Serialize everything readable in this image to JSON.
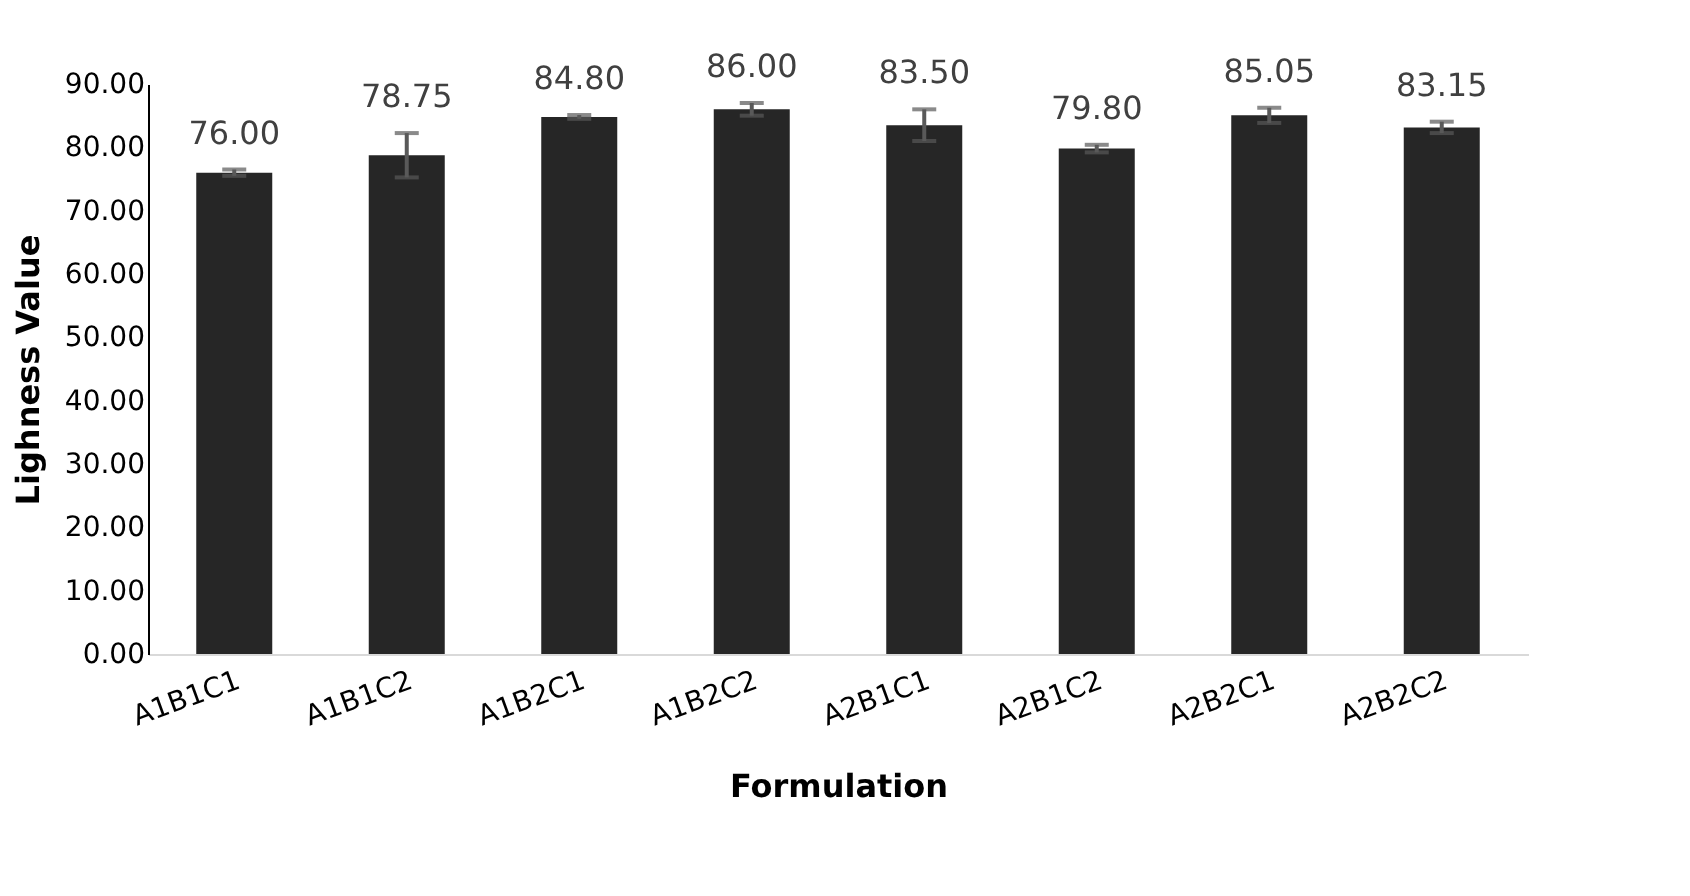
{
  "chart_data": {
    "type": "bar",
    "xlabel": "Formulation",
    "ylabel": "Lighness Value",
    "categories": [
      "A1B1C1",
      "A1B1C2",
      "A1B2C1",
      "A1B2C2",
      "A2B1C1",
      "A2B1C2",
      "A2B2C1",
      "A2B2C2"
    ],
    "values": [
      76.0,
      78.75,
      84.8,
      86.0,
      83.5,
      79.8,
      85.05,
      83.15
    ],
    "errors": [
      0.5,
      3.5,
      0.3,
      1.0,
      2.5,
      0.6,
      1.2,
      0.9
    ],
    "value_labels": [
      "76.00",
      "78.75",
      "84.80",
      "86.00",
      "83.50",
      "79.80",
      "85.05",
      "83.15"
    ],
    "color": "#262626",
    "ylim": [
      0,
      90
    ],
    "yticks": [
      {
        "value": 0,
        "label": "0.00"
      },
      {
        "value": 10,
        "label": "10.00"
      },
      {
        "value": 20,
        "label": "20.00"
      },
      {
        "value": 30,
        "label": "30.00"
      },
      {
        "value": 40,
        "label": "40.00"
      },
      {
        "value": 50,
        "label": "50.00"
      },
      {
        "value": 60,
        "label": "60.00"
      },
      {
        "value": 70,
        "label": "70.00"
      },
      {
        "value": 80,
        "label": "80.00"
      },
      {
        "value": 90,
        "label": "90.00"
      }
    ],
    "grid": false
  }
}
